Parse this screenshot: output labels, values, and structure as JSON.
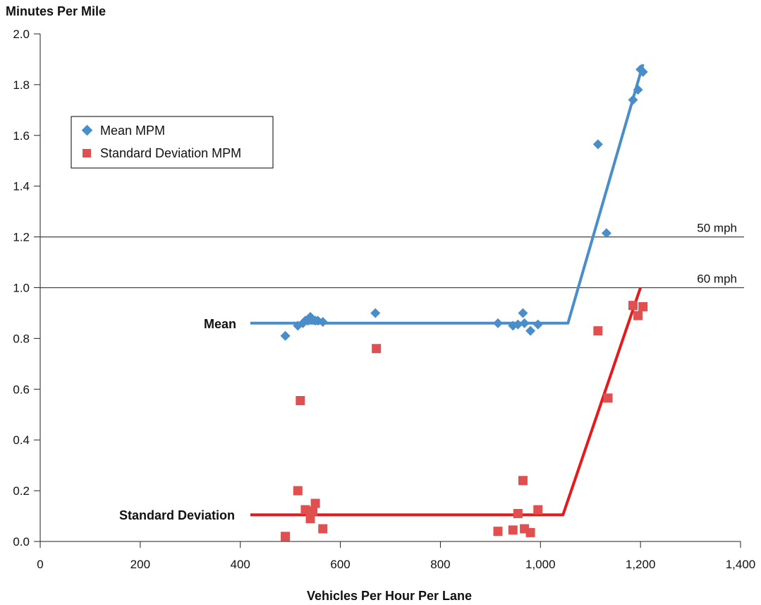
{
  "chart_data": {
    "type": "scatter",
    "ylabel": "Minutes Per Mile",
    "xlabel": "Vehicles Per Hour Per Lane",
    "xlim": [
      0,
      1400
    ],
    "ylim": [
      0,
      2.0
    ],
    "x_ticks": [
      0,
      200,
      400,
      600,
      800,
      1000,
      1200,
      1400
    ],
    "x_tick_labels": [
      "0",
      "200",
      "400",
      "600",
      "800",
      "1,000",
      "1,200",
      "1,400"
    ],
    "y_ticks": [
      0,
      0.2,
      0.4,
      0.6,
      0.8,
      1.0,
      1.2,
      1.4,
      1.6,
      1.8,
      2.0
    ],
    "y_tick_labels": [
      "0.0",
      "0.2",
      "0.4",
      "0.6",
      "0.8",
      "1.0",
      "1.2",
      "1.4",
      "1.6",
      "1.8",
      "2.0"
    ],
    "legend_position": "upper-left",
    "grid": false,
    "series": [
      {
        "name": "Mean MPM",
        "marker": "diamond",
        "color": "#4a8ec9",
        "points": [
          [
            490,
            0.81
          ],
          [
            515,
            0.85
          ],
          [
            525,
            0.86
          ],
          [
            530,
            0.87
          ],
          [
            535,
            0.87
          ],
          [
            540,
            0.885
          ],
          [
            545,
            0.875
          ],
          [
            550,
            0.87
          ],
          [
            555,
            0.87
          ],
          [
            565,
            0.865
          ],
          [
            670,
            0.9
          ],
          [
            915,
            0.86
          ],
          [
            945,
            0.85
          ],
          [
            955,
            0.855
          ],
          [
            965,
            0.9
          ],
          [
            968,
            0.86
          ],
          [
            980,
            0.83
          ],
          [
            995,
            0.855
          ],
          [
            1115,
            1.565
          ],
          [
            1132,
            1.215
          ],
          [
            1185,
            1.74
          ],
          [
            1195,
            1.78
          ],
          [
            1200,
            1.86
          ],
          [
            1205,
            1.85
          ]
        ]
      },
      {
        "name": "Standard Deviation MPM",
        "marker": "square",
        "color": "#e05050",
        "points": [
          [
            490,
            0.02
          ],
          [
            515,
            0.2
          ],
          [
            520,
            0.555
          ],
          [
            530,
            0.125
          ],
          [
            540,
            0.09
          ],
          [
            545,
            0.12
          ],
          [
            550,
            0.15
          ],
          [
            565,
            0.05
          ],
          [
            672,
            0.76
          ],
          [
            915,
            0.04
          ],
          [
            945,
            0.045
          ],
          [
            955,
            0.11
          ],
          [
            965,
            0.24
          ],
          [
            968,
            0.05
          ],
          [
            980,
            0.035
          ],
          [
            995,
            0.125
          ],
          [
            1115,
            0.83
          ],
          [
            1135,
            0.565
          ],
          [
            1185,
            0.93
          ],
          [
            1195,
            0.89
          ],
          [
            1205,
            0.925
          ]
        ]
      }
    ],
    "fit_lines": [
      {
        "label": "Mean",
        "color": "#4a8ec9",
        "points": [
          [
            420,
            0.86
          ],
          [
            1055,
            0.86
          ],
          [
            1205,
            1.88
          ]
        ]
      },
      {
        "label": "Standard Deviation",
        "color": "#e61a1a",
        "points": [
          [
            420,
            0.105
          ],
          [
            1045,
            0.105
          ],
          [
            1200,
            1.0
          ]
        ]
      }
    ],
    "reference_lines": [
      {
        "y": 1.2,
        "label": "50 mph"
      },
      {
        "y": 1.0,
        "label": "60 mph"
      }
    ]
  }
}
